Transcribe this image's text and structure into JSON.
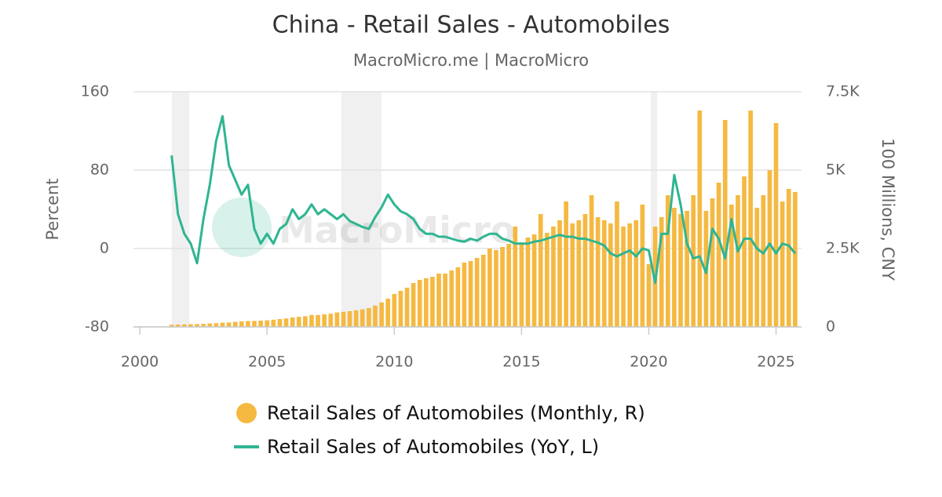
{
  "chart_data": {
    "type": "bar-line",
    "title": "China - Retail Sales - Automobiles",
    "subtitle": "MacroMicro.me | MacroMicro",
    "watermark": "MacroMicro",
    "y_label": "Percent",
    "y2_label": "100 Millions, CNY",
    "xlim": [
      1999.75,
      2026
    ],
    "xticks": [
      2000,
      2005,
      2010,
      2015,
      2020,
      2025
    ],
    "ylim": [
      -80,
      160
    ],
    "yticks": [
      -80,
      0,
      80,
      160
    ],
    "y2lim": [
      0,
      7500
    ],
    "y2ticks": [
      0,
      {
        "value": 2500,
        "label": "2.5K"
      },
      {
        "value": 5000,
        "label": "5K"
      },
      {
        "value": 7500,
        "label": "7.5K"
      }
    ],
    "grid": true,
    "shaded_ranges": [
      [
        2001.25,
        2001.95
      ],
      [
        2007.92,
        2009.5
      ],
      [
        2020.08,
        2020.33
      ]
    ],
    "x": [
      2001.25,
      2001.5,
      2001.75,
      2002,
      2002.25,
      2002.5,
      2002.75,
      2003,
      2003.25,
      2003.5,
      2003.75,
      2004,
      2004.25,
      2004.5,
      2004.75,
      2005,
      2005.25,
      2005.5,
      2005.75,
      2006,
      2006.25,
      2006.5,
      2006.75,
      2007,
      2007.25,
      2007.5,
      2007.75,
      2008,
      2008.25,
      2008.5,
      2008.75,
      2009,
      2009.25,
      2009.5,
      2009.75,
      2010,
      2010.25,
      2010.5,
      2010.75,
      2011,
      2011.25,
      2011.5,
      2011.75,
      2012,
      2012.25,
      2012.5,
      2012.75,
      2013,
      2013.25,
      2013.5,
      2013.75,
      2014,
      2014.25,
      2014.5,
      2014.75,
      2015,
      2015.25,
      2015.5,
      2015.75,
      2016,
      2016.25,
      2016.5,
      2016.75,
      2017,
      2017.25,
      2017.5,
      2017.75,
      2018,
      2018.25,
      2018.5,
      2018.75,
      2019,
      2019.25,
      2019.5,
      2019.75,
      2020,
      2020.25,
      2020.5,
      2020.75,
      2021,
      2021.25,
      2021.5,
      2021.75,
      2022,
      2022.25,
      2022.5,
      2022.75,
      2023,
      2023.25,
      2023.5,
      2023.75,
      2024,
      2024.25,
      2024.5,
      2024.75,
      2025,
      2025.25,
      2025.5,
      2025.75
    ],
    "series": [
      {
        "name": "Retail Sales of Automobiles (Monthly, R)",
        "color": "#f5b942",
        "axis": "y2",
        "kind": "bar",
        "values": [
          70,
          75,
          80,
          85,
          90,
          95,
          110,
          120,
          135,
          140,
          160,
          175,
          185,
          190,
          200,
          210,
          230,
          250,
          270,
          300,
          320,
          340,
          380,
          380,
          400,
          420,
          460,
          480,
          500,
          530,
          560,
          600,
          680,
          780,
          900,
          1050,
          1150,
          1250,
          1400,
          1500,
          1550,
          1600,
          1700,
          1700,
          1800,
          1900,
          2050,
          2100,
          2200,
          2300,
          2500,
          2450,
          2550,
          2650,
          3200,
          2700,
          2850,
          2950,
          3600,
          3000,
          3200,
          3400,
          4000,
          3300,
          3400,
          3600,
          4200,
          3500,
          3400,
          3300,
          4000,
          3200,
          3300,
          3400,
          3900,
          2000,
          3200,
          3500,
          4200,
          3800,
          3600,
          3700,
          4200,
          6900,
          3700,
          4100,
          4600,
          6600,
          3900,
          4200,
          4800,
          6900,
          3800,
          4200,
          5000,
          6500,
          4000,
          4400,
          4300
        ]
      },
      {
        "name": "Retail Sales of Automobiles (YoY, L)",
        "color": "#2fb592",
        "axis": "y",
        "kind": "line",
        "values": [
          95,
          35,
          15,
          5,
          -15,
          30,
          65,
          110,
          135,
          85,
          70,
          55,
          65,
          20,
          5,
          15,
          5,
          20,
          25,
          40,
          30,
          35,
          45,
          35,
          40,
          35,
          30,
          35,
          28,
          25,
          22,
          20,
          32,
          42,
          55,
          45,
          38,
          35,
          30,
          20,
          15,
          15,
          12,
          12,
          10,
          8,
          7,
          10,
          8,
          12,
          15,
          15,
          10,
          8,
          5,
          5,
          5,
          7,
          8,
          10,
          12,
          14,
          12,
          12,
          10,
          10,
          8,
          6,
          3,
          -5,
          -8,
          -5,
          -2,
          -8,
          0,
          -2,
          -35,
          15,
          15,
          75,
          45,
          5,
          -10,
          -8,
          -25,
          20,
          10,
          -10,
          30,
          -3,
          10,
          10,
          0,
          -5,
          5,
          -5,
          5,
          3,
          -5
        ]
      }
    ]
  }
}
